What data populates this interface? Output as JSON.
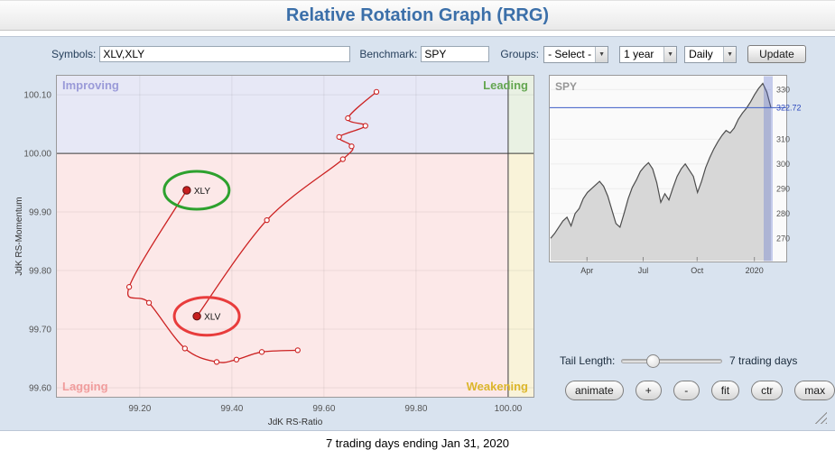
{
  "header": {
    "title": "Relative Rotation Graph (RRG)"
  },
  "toolbar": {
    "symbols_label": "Symbols:",
    "symbols_value": "XLV,XLY",
    "benchmark_label": "Benchmark:",
    "benchmark_value": "SPY",
    "groups_label": "Groups:",
    "groups_value": "- Select -",
    "period_value": "1 year",
    "frequency_value": "Daily",
    "update_label": "Update"
  },
  "icons": {
    "chevron_down": "▼"
  },
  "tail": {
    "label": "Tail Length:",
    "value_text": "7 trading days"
  },
  "controls": [
    "animate",
    "+",
    "-",
    "fit",
    "ctr",
    "max"
  ],
  "footer": {
    "caption": "7 trading days ending Jan 31, 2020"
  },
  "chart_data": [
    {
      "id": "rrg",
      "type": "scatter",
      "xlabel": "JdK RS-Ratio",
      "ylabel": "JdK RS-Momentum",
      "xlim": [
        99.018,
        100.057
      ],
      "ylim": [
        99.583,
        100.134
      ],
      "xticks": [
        "99.20",
        "99.40",
        "99.60",
        "99.80",
        "100.00"
      ],
      "yticks": [
        "99.60",
        "99.70",
        "99.80",
        "99.90",
        "100.00",
        "100.10"
      ],
      "center": [
        100.0,
        100.0
      ],
      "trail_color": "#cc2222",
      "head_color": "#c61f1f",
      "quadrants": {
        "improving": {
          "label": "Improving",
          "bg": "#e7e8f6",
          "color": "#9a9ad8"
        },
        "leading": {
          "label": "Leading",
          "bg": "#e9f1e3",
          "color": "#64a651"
        },
        "lagging": {
          "label": "Lagging",
          "bg": "#fce8e8",
          "color": "#f09c9c"
        },
        "weakening": {
          "label": "Weakening",
          "bg": "#f9f3d9",
          "color": "#dcb62b"
        }
      },
      "series": [
        {
          "name": "XLV",
          "ellipse_color": "#e83c3c",
          "points": [
            [
              99.714,
              100.105
            ],
            [
              99.652,
              100.06
            ],
            [
              99.69,
              100.047
            ],
            [
              99.633,
              100.028
            ],
            [
              99.66,
              100.012
            ],
            [
              99.641,
              99.99
            ],
            [
              99.476,
              99.886
            ],
            [
              99.324,
              99.722
            ]
          ]
        },
        {
          "name": "XLY",
          "ellipse_color": "#2da12e",
          "points": [
            [
              99.543,
              99.664
            ],
            [
              99.465,
              99.661
            ],
            [
              99.41,
              99.648
            ],
            [
              99.367,
              99.644
            ],
            [
              99.298,
              99.667
            ],
            [
              99.22,
              99.745
            ],
            [
              99.177,
              99.772
            ],
            [
              99.302,
              99.937
            ]
          ]
        }
      ]
    },
    {
      "id": "spy",
      "type": "area",
      "title": "SPY",
      "last_price": "322.72",
      "ylim": [
        261,
        334.5
      ],
      "yticks": [
        "330",
        "310",
        "300",
        "290",
        "280",
        "270"
      ],
      "xticks": [
        {
          "label": "Apr",
          "pos": 0.165
        },
        {
          "label": "Jul",
          "pos": 0.42
        },
        {
          "label": "Oct",
          "pos": 0.665
        },
        {
          "label": "2020",
          "pos": 0.925
        }
      ],
      "values": [
        270,
        272,
        274.5,
        277,
        278.5,
        275,
        280,
        282,
        286,
        288.5,
        290,
        291.5,
        293,
        291,
        287,
        281.5,
        276,
        274.5,
        280,
        286,
        290.5,
        293.5,
        297,
        299,
        300.5,
        298,
        292.5,
        284.5,
        288,
        285.5,
        290.5,
        295,
        298,
        300,
        297.5,
        295,
        288.5,
        293,
        298.5,
        302.5,
        306,
        309,
        311.5,
        313.5,
        312.5,
        314.5,
        318,
        320.5,
        322.5,
        325,
        328,
        330.5,
        332.5,
        329,
        322.72
      ]
    }
  ]
}
